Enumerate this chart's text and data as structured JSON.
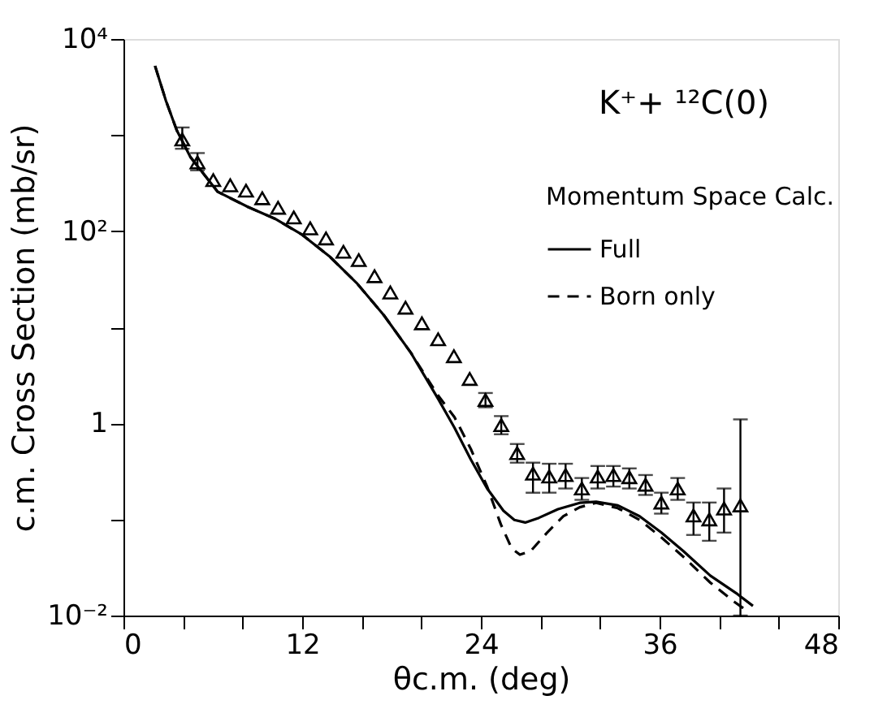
{
  "chart_data": {
    "type": "line",
    "xlabel": "θc.m. (deg)",
    "ylabel": "c.m. Cross Section (mb/sr)",
    "legend_title": "Momentum Space Calc.",
    "annotations": [
      "K⁺+ ¹²C(0)"
    ],
    "log": "y",
    "legend": "top right",
    "grid": false,
    "xlim": [
      0,
      48
    ],
    "xticks": [
      0,
      {
        "value": 4,
        "label": null
      },
      {
        "value": 8,
        "label": null
      },
      12,
      {
        "value": 16,
        "label": null
      },
      {
        "value": 20,
        "label": null
      },
      24,
      {
        "value": 28,
        "label": null
      },
      {
        "value": 32,
        "label": null
      },
      36,
      {
        "value": 40,
        "label": null
      },
      {
        "value": 44,
        "label": null
      },
      48
    ],
    "ylim": [
      0.01,
      10000
    ],
    "yticks": [
      {
        "value": 0.01,
        "label": "10⁻²"
      },
      {
        "value": 0.1,
        "label": null
      },
      1,
      {
        "value": 10,
        "label": null
      },
      {
        "value": 100,
        "label": "10²"
      },
      {
        "value": 1000,
        "label": null
      },
      {
        "value": 10000,
        "label": "10⁴"
      }
    ],
    "series": [
      {
        "type": "scatter",
        "color": "#000000",
        "marker": "triangle",
        "x": [
          3.95,
          4.97,
          6.03,
          7.17,
          8.23,
          9.32,
          10.38,
          11.44,
          12.54,
          13.6,
          14.77,
          15.8,
          16.86,
          17.92,
          18.94,
          20.04,
          21.13,
          22.19,
          23.25,
          24.31,
          25.37,
          26.44,
          27.5,
          28.59,
          29.69,
          30.78,
          31.85,
          32.9,
          33.97,
          35.06,
          36.12,
          37.22,
          38.28,
          39.34,
          40.33,
          41.43
        ],
        "values": [
          900,
          520,
          340,
          300,
          264,
          220,
          175,
          139,
          107,
          84,
          61,
          50,
          34,
          23,
          16,
          11,
          7.5,
          5.0,
          2.9,
          1.75,
          0.96,
          0.49,
          0.3,
          0.28,
          0.29,
          0.21,
          0.28,
          0.29,
          0.275,
          0.23,
          0.15,
          0.21,
          0.11,
          0.1,
          0.13,
          0.14
        ],
        "errors": [
          [
            720,
            1200
          ],
          [
            430,
            650
          ],
          null,
          null,
          null,
          null,
          null,
          null,
          null,
          null,
          null,
          null,
          null,
          null,
          null,
          null,
          null,
          null,
          null,
          [
            1.47,
            2.07
          ],
          [
            0.77,
            1.19
          ],
          [
            0.39,
            0.61
          ],
          [
            0.19,
            0.39
          ],
          [
            0.19,
            0.38
          ],
          [
            0.21,
            0.38
          ],
          [
            0.16,
            0.27
          ],
          [
            0.21,
            0.36
          ],
          [
            0.22,
            0.36
          ],
          [
            0.21,
            0.34
          ],
          [
            0.18,
            0.29
          ],
          [
            0.115,
            0.19
          ],
          [
            0.16,
            0.27
          ],
          [
            0.069,
            0.15
          ],
          [
            0.06,
            0.15
          ],
          [
            0.073,
            0.21
          ],
          [
            0.01,
            1.1
          ]
        ]
      },
      {
        "name": "Full",
        "color": "#000000",
        "line_style": "solid",
        "x": [
          2.12,
          2.85,
          3.58,
          4.5,
          5.41,
          6.33,
          8.35,
          10.16,
          11.99,
          13.82,
          15.65,
          17.48,
          19.31,
          21.13,
          22.23,
          23.33,
          24.42,
          25.52,
          26.25,
          26.98,
          27.9,
          29.18,
          30.64,
          31.74,
          33.2,
          34.66,
          36.12,
          37.59,
          39.41,
          41.24,
          42.27
        ],
        "values": [
          5250,
          2280,
          1120,
          590,
          390,
          257,
          179,
          135,
          92,
          55,
          29,
          13.4,
          5.4,
          1.8,
          0.9,
          0.42,
          0.21,
          0.123,
          0.099,
          0.093,
          0.104,
          0.128,
          0.149,
          0.153,
          0.14,
          0.108,
          0.073,
          0.047,
          0.026,
          0.0167,
          0.0126
        ]
      },
      {
        "name": "Born only",
        "color": "#000000",
        "line_style": "dashed",
        "x": [
          2.12,
          2.85,
          3.58,
          4.5,
          5.41,
          6.33,
          8.35,
          10.16,
          11.99,
          13.82,
          15.65,
          17.48,
          19.31,
          21.13,
          22.23,
          23.33,
          24.42,
          25.34,
          26.07,
          26.62,
          27.35,
          28.45,
          29.54,
          30.64,
          31.74,
          33.2,
          34.66,
          36.12,
          37.59,
          39.41,
          41.05,
          42.05
        ],
        "values": [
          5250,
          2280,
          1120,
          590,
          390,
          257,
          179,
          135,
          92,
          55,
          29,
          13.4,
          5.4,
          1.95,
          1.16,
          0.54,
          0.22,
          0.089,
          0.05,
          0.043,
          0.047,
          0.073,
          0.108,
          0.134,
          0.149,
          0.131,
          0.099,
          0.065,
          0.041,
          0.022,
          0.0138,
          0.0107
        ]
      }
    ]
  }
}
